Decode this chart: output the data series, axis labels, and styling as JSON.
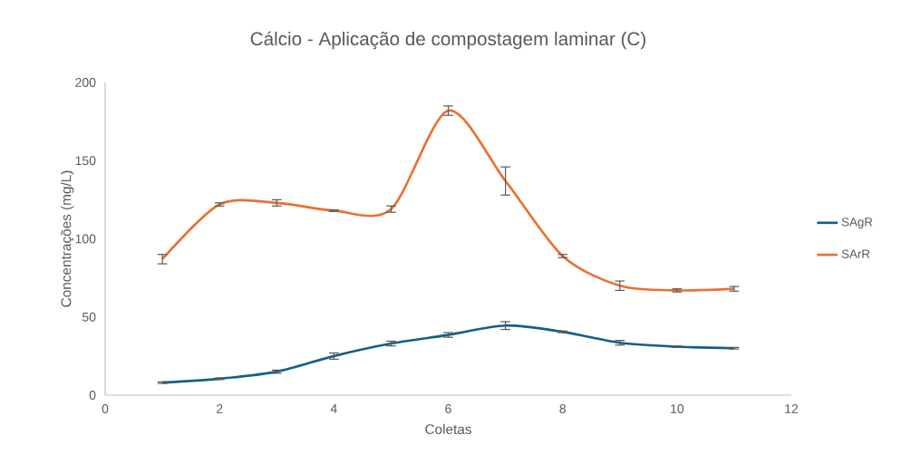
{
  "chart_data": {
    "type": "line",
    "title": "Cálcio - Aplicação de compostagem laminar (C)",
    "xlabel": "Coletas",
    "ylabel": "Concentrações (mg/L)",
    "x": [
      1,
      2,
      3,
      4,
      5,
      6,
      7,
      8,
      9,
      10,
      11
    ],
    "series": [
      {
        "name": "SAgR",
        "color": "#156082",
        "values": [
          8,
          10.5,
          15,
          25,
          33,
          38.5,
          44.5,
          40.5,
          33.5,
          31,
          30
        ],
        "errors": [
          0.5,
          0.5,
          1,
          2,
          1.5,
          1.5,
          2.5,
          0.5,
          1.5,
          0.5,
          0.5
        ]
      },
      {
        "name": "SArR",
        "color": "#e97132",
        "values": [
          87,
          122,
          123,
          118,
          119,
          182,
          137,
          89,
          70,
          67,
          68
        ],
        "errors": [
          3,
          1,
          2,
          0.5,
          2,
          3,
          9,
          1,
          3,
          1,
          1.5
        ]
      }
    ],
    "xlim": [
      0,
      12
    ],
    "xticks": [
      0,
      2,
      4,
      6,
      8,
      10,
      12
    ],
    "ylim": [
      0,
      200
    ],
    "yticks": [
      0,
      50,
      100,
      150,
      200
    ],
    "grid": false,
    "legend": "right",
    "marker": "none",
    "line_style": "solid"
  }
}
